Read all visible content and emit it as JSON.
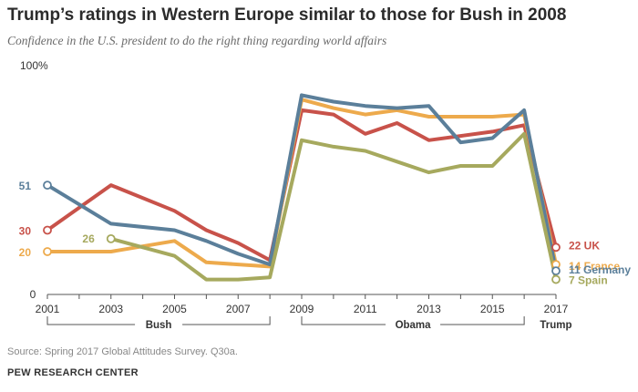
{
  "header": {
    "title": "Trump’s ratings in Western Europe similar to those for Bush in 2008",
    "subtitle": "Confidence in the U.S. president to do the right thing regarding world affairs"
  },
  "footer": {
    "source": "Source: Spring 2017 Global Attitudes Survey. Q30a.",
    "credit": "PEW RESEARCH CENTER"
  },
  "chart_data": {
    "type": "line",
    "title": "Trump’s ratings in Western Europe similar to those for Bush in 2008",
    "subtitle": "Confidence in the U.S. president to do the right thing regarding world affairs",
    "xlabel": "",
    "ylabel": "",
    "xlim": [
      2001,
      2017
    ],
    "ylim": [
      0,
      100
    ],
    "y_ticks": [
      {
        "value": 0,
        "label": "0"
      },
      {
        "value": 100,
        "label": "100%"
      }
    ],
    "x_ticks": [
      2001,
      2003,
      2005,
      2007,
      2009,
      2011,
      2013,
      2015,
      2017
    ],
    "eras": [
      {
        "label": "Bush",
        "from": 2001,
        "to": 2008
      },
      {
        "label": "Obama",
        "from": 2009,
        "to": 2016
      },
      {
        "label": "Trump",
        "from": 2017,
        "to": 2017
      }
    ],
    "series": [
      {
        "name": "UK",
        "color": "#c8524a",
        "points": [
          [
            2001,
            30
          ],
          [
            2003,
            51
          ],
          [
            2005,
            39
          ],
          [
            2006,
            30
          ],
          [
            2007,
            24
          ],
          [
            2008,
            16
          ],
          [
            2009,
            86
          ],
          [
            2010,
            84
          ],
          [
            2011,
            75
          ],
          [
            2012,
            80
          ],
          [
            2013,
            72
          ],
          [
            2014,
            74
          ],
          [
            2015,
            76
          ],
          [
            2016,
            79
          ],
          [
            2017,
            22
          ]
        ],
        "start_label": "30",
        "end_label": "22 UK"
      },
      {
        "name": "France",
        "color": "#edaa4c",
        "points": [
          [
            2001,
            20
          ],
          [
            2003,
            20
          ],
          [
            2005,
            25
          ],
          [
            2006,
            15
          ],
          [
            2007,
            14
          ],
          [
            2008,
            13
          ],
          [
            2009,
            91
          ],
          [
            2010,
            87
          ],
          [
            2011,
            84
          ],
          [
            2012,
            86
          ],
          [
            2013,
            83
          ],
          [
            2014,
            83
          ],
          [
            2015,
            83
          ],
          [
            2016,
            84
          ],
          [
            2017,
            14
          ]
        ],
        "start_label": "20",
        "end_label": "14 France"
      },
      {
        "name": "Germany",
        "color": "#5b7f9a",
        "points": [
          [
            2001,
            51
          ],
          [
            2003,
            33
          ],
          [
            2005,
            30
          ],
          [
            2006,
            25
          ],
          [
            2007,
            19
          ],
          [
            2008,
            14
          ],
          [
            2009,
            93
          ],
          [
            2010,
            90
          ],
          [
            2011,
            88
          ],
          [
            2012,
            87
          ],
          [
            2013,
            88
          ],
          [
            2014,
            71
          ],
          [
            2015,
            73
          ],
          [
            2016,
            86
          ],
          [
            2017,
            11
          ]
        ],
        "start_label": "51",
        "end_label": "11 Germany"
      },
      {
        "name": "Spain",
        "color": "#a6a95e",
        "points": [
          [
            2003,
            26
          ],
          [
            2005,
            18
          ],
          [
            2006,
            7
          ],
          [
            2007,
            7
          ],
          [
            2008,
            8
          ],
          [
            2009,
            72
          ],
          [
            2010,
            69
          ],
          [
            2011,
            67
          ],
          [
            2012,
            62
          ],
          [
            2013,
            57
          ],
          [
            2014,
            60
          ],
          [
            2015,
            60
          ],
          [
            2016,
            75
          ],
          [
            2017,
            7
          ]
        ],
        "start_label": "26",
        "end_label": "7 Spain"
      }
    ]
  }
}
